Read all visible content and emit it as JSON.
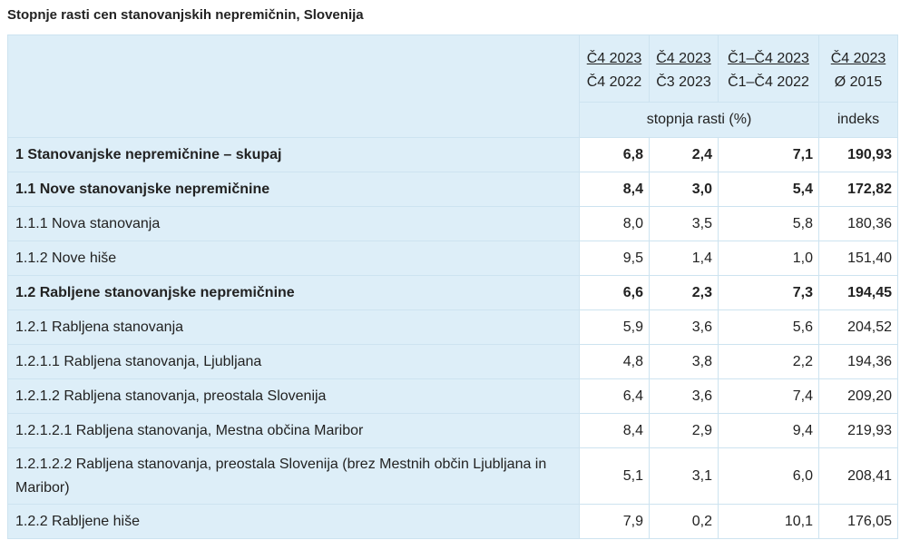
{
  "title": "Stopnje rasti cen stanovanjskih nepremičnin, Slovenija",
  "columns": [
    {
      "top": "Č4 2023",
      "bottom": "Č4 2022"
    },
    {
      "top": "Č4 2023",
      "bottom": "Č3 2023"
    },
    {
      "top": "Č1–Č4 2023",
      "bottom": "Č1–Č4 2022"
    },
    {
      "top": "Č4 2023",
      "bottom": "Ø 2015"
    }
  ],
  "units": {
    "growth": "stopnja rasti (%)",
    "index": "indeks"
  },
  "rows": [
    {
      "label": "1 Stanovanjske nepremičnine – skupaj",
      "bold": true,
      "values": [
        "6,8",
        "2,4",
        "7,1",
        "190,93"
      ]
    },
    {
      "label": "1.1 Nove stanovanjske nepremičnine",
      "bold": true,
      "values": [
        "8,4",
        "3,0",
        "5,4",
        "172,82"
      ]
    },
    {
      "label": "1.1.1 Nova stanovanja",
      "bold": false,
      "values": [
        "8,0",
        "3,5",
        "5,8",
        "180,36"
      ]
    },
    {
      "label": "1.1.2 Nove hiše",
      "bold": false,
      "values": [
        "9,5",
        "1,4",
        "1,0",
        "151,40"
      ]
    },
    {
      "label": "1.2 Rabljene stanovanjske nepremičnine",
      "bold": true,
      "values": [
        "6,6",
        "2,3",
        "7,3",
        "194,45"
      ]
    },
    {
      "label": "1.2.1 Rabljena stanovanja",
      "bold": false,
      "values": [
        "5,9",
        "3,6",
        "5,6",
        "204,52"
      ]
    },
    {
      "label": "1.2.1.1 Rabljena stanovanja, Ljubljana",
      "bold": false,
      "values": [
        "4,8",
        "3,8",
        "2,2",
        "194,36"
      ]
    },
    {
      "label": "1.2.1.2 Rabljena stanovanja, preostala Slovenija",
      "bold": false,
      "values": [
        "6,4",
        "3,6",
        "7,4",
        "209,20"
      ]
    },
    {
      "label": "1.2.1.2.1 Rabljena stanovanja, Mestna občina Maribor",
      "bold": false,
      "values": [
        "8,4",
        "2,9",
        "9,4",
        "219,93"
      ]
    },
    {
      "label": "1.2.1.2.2 Rabljena stanovanja, preostala Slovenija (brez Mestnih občin Ljubljana in Maribor)",
      "bold": false,
      "tall": true,
      "values": [
        "5,1",
        "3,1",
        "6,0",
        "208,41"
      ]
    },
    {
      "label": "1.2.2 Rabljene hiše",
      "bold": false,
      "values": [
        "7,9",
        "0,2",
        "10,1",
        "176,05"
      ]
    }
  ],
  "colors": {
    "header_bg": "#ddeef8",
    "border": "#cde3f0",
    "text": "#222222"
  }
}
